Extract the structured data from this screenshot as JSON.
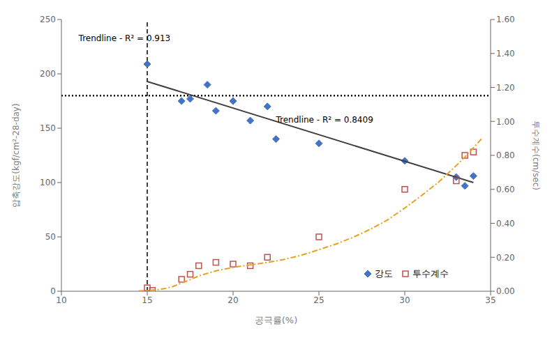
{
  "chart_data": {
    "type": "scatter",
    "xlabel": "공극률(%)",
    "ylabel": "압축강도(kgf/cm²-28-day)",
    "y2label": "투수계수(cm/sec)",
    "xlim": [
      10,
      35
    ],
    "xticks": [
      10,
      15,
      20,
      25,
      30,
      35
    ],
    "ylim": [
      0,
      250
    ],
    "yticks": [
      0,
      50,
      100,
      150,
      200,
      250
    ],
    "y2lim": [
      0.0,
      1.6
    ],
    "y2ticks": [
      {
        "value": 0.0,
        "label": "0.00"
      },
      {
        "value": 0.2,
        "label": "0.20"
      },
      {
        "value": 0.4,
        "label": "0.40"
      },
      {
        "value": 0.6,
        "label": "0.60"
      },
      {
        "value": 0.8,
        "label": "0.80"
      },
      {
        "value": 1.0,
        "label": "1.00"
      },
      {
        "value": 1.2,
        "label": "1.20"
      },
      {
        "value": 1.4,
        "label": "1.40"
      },
      {
        "value": 1.6,
        "label": "1.60"
      }
    ],
    "grid": false,
    "legend": "lower right",
    "series": [
      {
        "name": "강도",
        "type": "scatter",
        "marker": "diamond",
        "color": "#4472C4",
        "x": [
          15,
          17,
          17.5,
          18.5,
          19,
          20,
          21,
          22,
          22.5,
          25,
          30,
          33,
          33.5,
          34
        ],
        "values": [
          209,
          175,
          177,
          190,
          166,
          175,
          157,
          170,
          140,
          136,
          120,
          105,
          97,
          106
        ]
      },
      {
        "type": "line",
        "line_style": "solid",
        "color": "#404040",
        "x": [
          15,
          34
        ],
        "values": [
          193,
          100
        ]
      },
      {
        "name": "투수계수",
        "type": "scatter",
        "marker": "open_square",
        "color": "#C0504D",
        "axis": "y2",
        "x": [
          15,
          15.3,
          17,
          17.5,
          18,
          19,
          20,
          21,
          22,
          25,
          30,
          33,
          33.5,
          34
        ],
        "values": [
          0.02,
          0.005,
          0.07,
          0.1,
          0.15,
          0.17,
          0.16,
          0.15,
          0.2,
          0.32,
          0.6,
          0.65,
          0.8,
          0.82
        ]
      },
      {
        "type": "line",
        "line_style": "dashdot",
        "color": "#E8A020",
        "axis": "y2",
        "x": [
          14.5,
          15,
          15.5,
          16,
          16.5,
          17,
          17.5,
          18,
          18.5,
          19,
          19.5,
          20,
          20.5,
          21,
          21.5,
          22,
          22.5,
          23,
          23.5,
          24,
          24.5,
          25,
          26,
          27,
          28,
          29,
          30,
          31,
          32,
          33,
          33.5,
          34,
          34.5
        ],
        "values": [
          0.002,
          0.004,
          0.008,
          0.015,
          0.028,
          0.048,
          0.068,
          0.09,
          0.105,
          0.12,
          0.13,
          0.14,
          0.148,
          0.155,
          0.162,
          0.17,
          0.178,
          0.188,
          0.2,
          0.213,
          0.228,
          0.245,
          0.278,
          0.318,
          0.365,
          0.42,
          0.49,
          0.565,
          0.645,
          0.74,
          0.79,
          0.845,
          0.9
        ]
      }
    ],
    "reference_lines": [
      {
        "x": 15,
        "line_style": "dashed",
        "color": "#000000"
      },
      {
        "y": 180,
        "line_style": "dotted",
        "color": "#000000"
      }
    ],
    "annotations": [
      {
        "text": "Trendline - R² = 0.913",
        "x": 11.0,
        "y": 237
      },
      {
        "text": "Trendline - R² = 0.8409",
        "x": 22.5,
        "y": 162
      }
    ]
  }
}
